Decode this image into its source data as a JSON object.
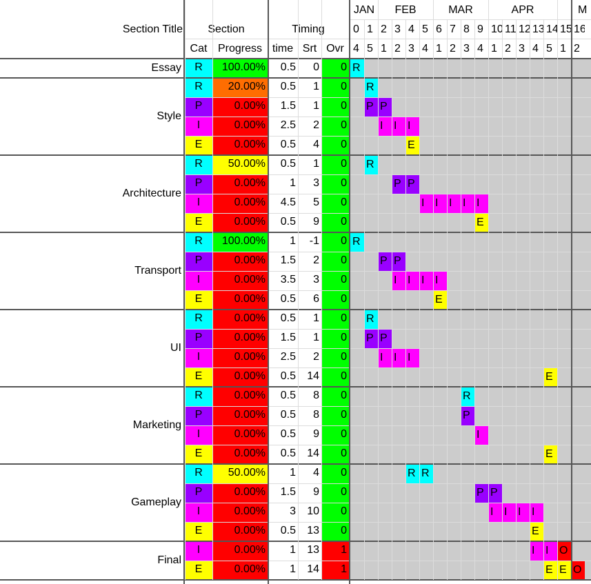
{
  "header": {
    "section_title": "Section Title",
    "section": "Section",
    "timing": "Timing",
    "cat": "Cat",
    "progress": "Progress",
    "time": "time",
    "srt": "Srt",
    "ovr": "Ovr"
  },
  "months": [
    "JAN",
    "FEB",
    "MAR",
    "APR",
    "M"
  ],
  "week_index": [
    "0",
    "1",
    "2",
    "3",
    "4",
    "5",
    "6",
    "7",
    "8",
    "9",
    "10",
    "11",
    "12",
    "13",
    "14",
    "15",
    "16"
  ],
  "week_of_month": [
    "4",
    "5",
    "1",
    "2",
    "3",
    "4",
    "1",
    "2",
    "3",
    "4",
    "1",
    "2",
    "3",
    "4",
    "5",
    "1",
    "2"
  ],
  "colors": {
    "R": "#00ffff",
    "P": "#9900ff",
    "I": "#ff00ff",
    "E": "#ffff00",
    "O": "#ff0000",
    "prog_full": "#00ff00",
    "prog_half": "#ffff00",
    "prog_low": "#ff6d01",
    "prog_zero": "#ff0000",
    "ovr_ok": "#00ff00",
    "ovr_bad": "#ff0000",
    "gantt": "#cccccc"
  },
  "sections": [
    {
      "title": "Essay",
      "rows": [
        {
          "cat": "R",
          "progress": "100.00%",
          "time": "0.5",
          "srt": "0",
          "ovr": "0",
          "marks": [
            0
          ]
        }
      ]
    },
    {
      "title": "Style",
      "rows": [
        {
          "cat": "R",
          "progress": "20.00%",
          "time": "0.5",
          "srt": "1",
          "ovr": "0",
          "marks": [
            1
          ]
        },
        {
          "cat": "P",
          "progress": "0.00%",
          "time": "1.5",
          "srt": "1",
          "ovr": "0",
          "marks": [
            1,
            2
          ]
        },
        {
          "cat": "I",
          "progress": "0.00%",
          "time": "2.5",
          "srt": "2",
          "ovr": "0",
          "marks": [
            2,
            3,
            4
          ]
        },
        {
          "cat": "E",
          "progress": "0.00%",
          "time": "0.5",
          "srt": "4",
          "ovr": "0",
          "marks": [
            4
          ]
        }
      ]
    },
    {
      "title": "Architecture",
      "rows": [
        {
          "cat": "R",
          "progress": "50.00%",
          "time": "0.5",
          "srt": "1",
          "ovr": "0",
          "marks": [
            1
          ]
        },
        {
          "cat": "P",
          "progress": "0.00%",
          "time": "1",
          "srt": "3",
          "ovr": "0",
          "marks": [
            3,
            4
          ]
        },
        {
          "cat": "I",
          "progress": "0.00%",
          "time": "4.5",
          "srt": "5",
          "ovr": "0",
          "marks": [
            5,
            6,
            7,
            8,
            9
          ]
        },
        {
          "cat": "E",
          "progress": "0.00%",
          "time": "0.5",
          "srt": "9",
          "ovr": "0",
          "marks": [
            9
          ]
        }
      ]
    },
    {
      "title": "Transport",
      "rows": [
        {
          "cat": "R",
          "progress": "100.00%",
          "time": "1",
          "srt": "-1",
          "ovr": "0",
          "marks": [
            0
          ]
        },
        {
          "cat": "P",
          "progress": "0.00%",
          "time": "1.5",
          "srt": "2",
          "ovr": "0",
          "marks": [
            2,
            3
          ]
        },
        {
          "cat": "I",
          "progress": "0.00%",
          "time": "3.5",
          "srt": "3",
          "ovr": "0",
          "marks": [
            3,
            4,
            5,
            6
          ]
        },
        {
          "cat": "E",
          "progress": "0.00%",
          "time": "0.5",
          "srt": "6",
          "ovr": "0",
          "marks": [
            6
          ]
        }
      ]
    },
    {
      "title": "UI",
      "rows": [
        {
          "cat": "R",
          "progress": "0.00%",
          "time": "0.5",
          "srt": "1",
          "ovr": "0",
          "marks": [
            1
          ]
        },
        {
          "cat": "P",
          "progress": "0.00%",
          "time": "1.5",
          "srt": "1",
          "ovr": "0",
          "marks": [
            1,
            2
          ]
        },
        {
          "cat": "I",
          "progress": "0.00%",
          "time": "2.5",
          "srt": "2",
          "ovr": "0",
          "marks": [
            2,
            3,
            4
          ]
        },
        {
          "cat": "E",
          "progress": "0.00%",
          "time": "0.5",
          "srt": "14",
          "ovr": "0",
          "marks": [
            14
          ]
        }
      ]
    },
    {
      "title": "Marketing",
      "rows": [
        {
          "cat": "R",
          "progress": "0.00%",
          "time": "0.5",
          "srt": "8",
          "ovr": "0",
          "marks": [
            8
          ]
        },
        {
          "cat": "P",
          "progress": "0.00%",
          "time": "0.5",
          "srt": "8",
          "ovr": "0",
          "marks": [
            8
          ]
        },
        {
          "cat": "I",
          "progress": "0.00%",
          "time": "0.5",
          "srt": "9",
          "ovr": "0",
          "marks": [
            9
          ]
        },
        {
          "cat": "E",
          "progress": "0.00%",
          "time": "0.5",
          "srt": "14",
          "ovr": "0",
          "marks": [
            14
          ]
        }
      ]
    },
    {
      "title": "Gameplay",
      "rows": [
        {
          "cat": "R",
          "progress": "50.00%",
          "time": "1",
          "srt": "4",
          "ovr": "0",
          "marks": [
            4,
            5
          ]
        },
        {
          "cat": "P",
          "progress": "0.00%",
          "time": "1.5",
          "srt": "9",
          "ovr": "0",
          "marks": [
            9,
            10
          ]
        },
        {
          "cat": "I",
          "progress": "0.00%",
          "time": "3",
          "srt": "10",
          "ovr": "0",
          "marks": [
            10,
            11,
            12,
            13
          ]
        },
        {
          "cat": "E",
          "progress": "0.00%",
          "time": "0.5",
          "srt": "13",
          "ovr": "0",
          "marks": [
            13
          ]
        }
      ]
    },
    {
      "title": "Final",
      "rows": [
        {
          "cat": "I",
          "progress": "0.00%",
          "time": "1",
          "srt": "13",
          "ovr": "1",
          "marks": [
            13,
            14
          ],
          "extra": [
            {
              "col": 15,
              "label": "O"
            }
          ]
        },
        {
          "cat": "E",
          "progress": "0.00%",
          "time": "1",
          "srt": "14",
          "ovr": "1",
          "marks": [
            14,
            15
          ],
          "extra": [
            {
              "col": 16,
              "label": "O"
            }
          ]
        }
      ]
    }
  ]
}
